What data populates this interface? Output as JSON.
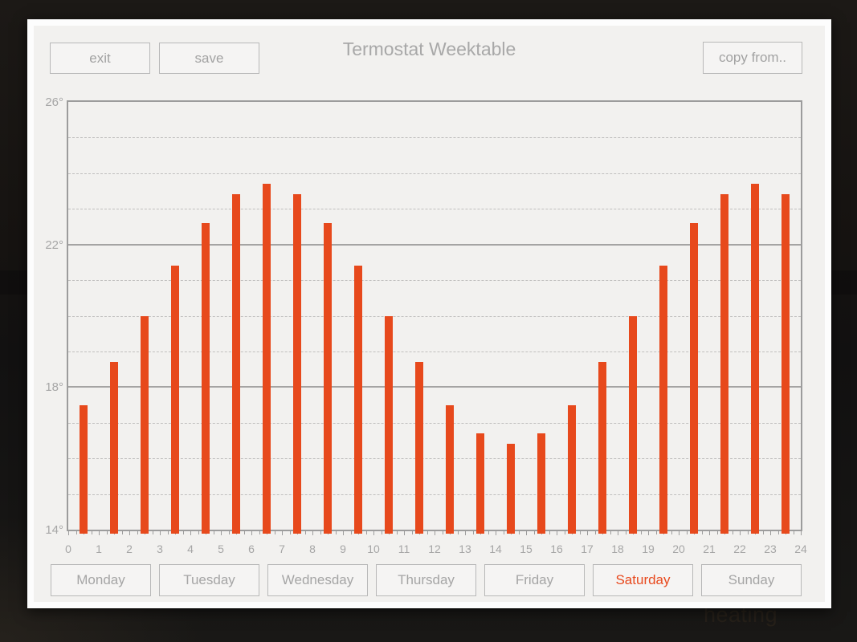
{
  "app": {
    "title": "Termostat Weektable",
    "toolbar": {
      "exit_label": "exit",
      "save_label": "save",
      "copy_from_label": "copy from.."
    },
    "days": [
      {
        "label": "Monday",
        "selected": false
      },
      {
        "label": "Tuesday",
        "selected": false
      },
      {
        "label": "Wednesday",
        "selected": false
      },
      {
        "label": "Thursday",
        "selected": false
      },
      {
        "label": "Friday",
        "selected": false
      },
      {
        "label": "Saturday",
        "selected": true
      },
      {
        "label": "Sunday",
        "selected": false
      }
    ],
    "background_text": "heating"
  },
  "chart_data": {
    "type": "bar",
    "title": "Termostat Weektable",
    "selected_day": "Saturday",
    "hours": [
      0,
      1,
      2,
      3,
      4,
      5,
      6,
      7,
      8,
      9,
      10,
      11,
      12,
      13,
      14,
      15,
      16,
      17,
      18,
      19,
      20,
      21,
      22,
      23
    ],
    "values": [
      17.5,
      18.7,
      20.0,
      21.4,
      22.6,
      23.4,
      23.7,
      23.4,
      22.6,
      21.4,
      20.0,
      18.7,
      17.5,
      16.7,
      16.4,
      16.7,
      17.5,
      18.7,
      20.0,
      21.4,
      22.6,
      23.4,
      23.7,
      23.4
    ],
    "ylim": [
      14,
      26
    ],
    "y_major_ticks": [
      26,
      22,
      18,
      14
    ],
    "y_major_tick_labels": [
      "26°",
      "22°",
      "18°",
      "14°"
    ],
    "grid": {
      "solid_lines": [
        22,
        18
      ],
      "dashed_lines": [
        25,
        24,
        23,
        21,
        20,
        19,
        17,
        16,
        15
      ]
    },
    "x_ticks": [
      0,
      1,
      2,
      3,
      4,
      5,
      6,
      7,
      8,
      9,
      10,
      11,
      12,
      13,
      14,
      15,
      16,
      17,
      18,
      19,
      20,
      21,
      22,
      23,
      24
    ],
    "legend": "none",
    "bar_color": "#e7491c"
  },
  "colors": {
    "accent": "#e7491c",
    "selected_day_text": "#e8481c",
    "window_bg": "#f2f1ef",
    "window_frame": "#fdfdfd",
    "muted_text": "#a5a5a5",
    "grid_solid": "#a5a4a3",
    "grid_dashed": "#c0bfbe",
    "axis_border": "#9c9c9c",
    "page_bg": "#161311"
  }
}
